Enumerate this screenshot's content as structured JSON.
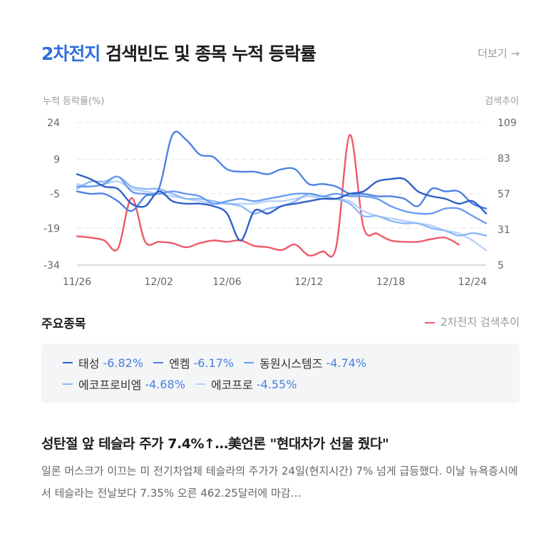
{
  "header": {
    "title_keyword": "2차전지",
    "title_rest": " 검색빈도 및 종목 누적 등락률",
    "more_label": "더보기 →"
  },
  "chart_data": {
    "type": "line",
    "left_axis_label": "누적 등락률(%)",
    "right_axis_label": "검색추이",
    "left_ylim": [
      -34,
      24
    ],
    "left_ticks": [
      24,
      9,
      -5,
      -19,
      -34
    ],
    "right_ylim": [
      5,
      109
    ],
    "right_ticks": [
      109,
      83,
      57,
      31,
      5
    ],
    "x_tick_labels": [
      "11/26",
      "12/02",
      "12/06",
      "12/12",
      "12/18",
      "12/24"
    ],
    "x_tick_index": [
      0,
      6,
      11,
      17,
      23,
      29
    ],
    "grid": "horizontal dashed",
    "series": [
      {
        "name": "태성",
        "axis": "left",
        "color": "#2f5fc8",
        "values": [
          3,
          1,
          -2,
          -3,
          -9,
          -10,
          -4,
          -8,
          -9,
          -9,
          -10,
          -13,
          -24,
          -12,
          -13,
          -10,
          -9,
          -8,
          -7,
          -7,
          -5,
          -4,
          0,
          1,
          1,
          -4,
          -6,
          -7,
          -9,
          -8,
          -13
        ]
      },
      {
        "name": "엔켐",
        "axis": "left",
        "color": "#4f82e2",
        "values": [
          -4,
          -5,
          -5,
          -8,
          -12,
          -6,
          -3,
          19,
          17,
          11,
          10,
          5,
          4,
          4,
          3,
          5,
          5,
          -1,
          -1,
          -2,
          -5,
          -5,
          -6,
          -6,
          -7,
          -10,
          -3,
          -4,
          -4,
          -9,
          -11
        ]
      },
      {
        "name": "동원시스템즈",
        "axis": "left",
        "color": "#6a9bf0",
        "values": [
          -2,
          -2,
          -1,
          2,
          -4,
          -5,
          -5,
          -4,
          -5,
          -6,
          -9,
          -8,
          -7,
          -8,
          -7,
          -6,
          -5,
          -5,
          -6,
          -5,
          -6,
          -6,
          -7,
          -10,
          -12,
          -13,
          -13,
          -11,
          -11,
          -14,
          -17
        ]
      },
      {
        "name": "에코프로비엠",
        "axis": "left",
        "color": "#8cb8f5",
        "values": [
          -3,
          0,
          0,
          2,
          -2,
          -3,
          -3,
          -5,
          -7,
          -7,
          -8,
          -9,
          -10,
          -13,
          -11,
          -10,
          -8,
          -5,
          -6,
          -7,
          -9,
          -14,
          -14,
          -16,
          -17,
          -17,
          -19,
          -20,
          -22,
          -21,
          -22
        ]
      },
      {
        "name": "에코프로",
        "axis": "left",
        "color": "#b6d2f8",
        "values": [
          -1,
          -2,
          -1,
          0,
          -3,
          -4,
          -5,
          -6,
          -7,
          -8,
          -9,
          -9,
          -9,
          -9,
          -8,
          -8,
          -7,
          -6,
          -7,
          -7,
          -8,
          -12,
          -14,
          -15,
          -16,
          -17,
          -18,
          -20,
          -21,
          -24,
          -28
        ]
      },
      {
        "name": "2차전지 검색추이",
        "axis": "right",
        "color": "#ee5a6a",
        "values": [
          26,
          25,
          23,
          17,
          54,
          22,
          22,
          21,
          18,
          21,
          23,
          22,
          23,
          19,
          18,
          16,
          20,
          12,
          15,
          18,
          100,
          33,
          28,
          23,
          22,
          22,
          24,
          25,
          20,
          null,
          null
        ]
      }
    ]
  },
  "section": {
    "title": "주요종목",
    "search_legend": "2차전지 검색추이"
  },
  "stocks": [
    {
      "name": "태성",
      "change": "-6.82%",
      "color": "#2f5fc8"
    },
    {
      "name": "엔켐",
      "change": "-6.17%",
      "color": "#4f82e2"
    },
    {
      "name": "동원시스템즈",
      "change": "-4.74%",
      "color": "#6a9bf0"
    },
    {
      "name": "에코프로비엠",
      "change": "-4.68%",
      "color": "#8cb8f5"
    },
    {
      "name": "에코프로",
      "change": "-4.55%",
      "color": "#b6d2f8"
    }
  ],
  "news": {
    "title": "성탄절 앞 테슬라 주가 7.4%↑…美언론 \"현대차가 선물 줬다\"",
    "body": "일론 머스크가 이끄는 미 전기차업체 테슬라의 주가가 24일(현지시간) 7% 넘게 급등했다. 이날 뉴욕증시에서 테슬라는 전날보다 7.35% 오른 462.25달러에 마감…"
  }
}
